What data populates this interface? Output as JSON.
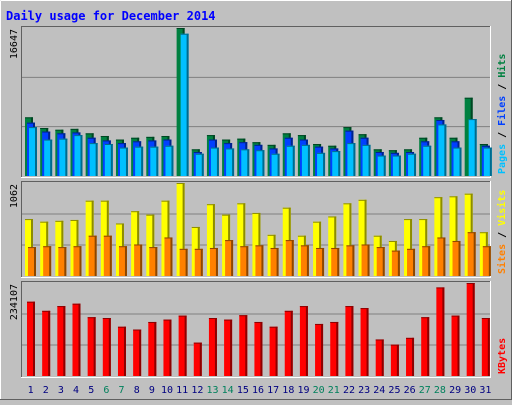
{
  "chart_data": {
    "type": "bar",
    "title": "Daily usage for December 2014",
    "categories": [
      "1",
      "2",
      "3",
      "4",
      "5",
      "6",
      "7",
      "8",
      "9",
      "10",
      "11",
      "12",
      "13",
      "14",
      "15",
      "16",
      "17",
      "18",
      "19",
      "20",
      "21",
      "22",
      "23",
      "24",
      "25",
      "26",
      "27",
      "28",
      "29",
      "30",
      "31"
    ],
    "weekend_days": [
      "6",
      "7",
      "13",
      "14",
      "20",
      "21",
      "27",
      "28"
    ],
    "weekend_color": "#00805c",
    "weekday_color": "#000080",
    "panels": [
      {
        "id": "hits-files-pages",
        "max_label": "16647",
        "ylim": [
          0,
          16647
        ],
        "grid_values": [
          5549,
          11098
        ],
        "side_label": [
          {
            "text": "Pages",
            "color": "#00c0ff"
          },
          {
            "text": " / ",
            "color": "#000000"
          },
          {
            "text": "Files",
            "color": "#0040ff"
          },
          {
            "text": " / ",
            "color": "#000000"
          },
          {
            "text": "Hits",
            "color": "#008040"
          }
        ],
        "series": [
          {
            "name": "Hits",
            "color": "#008040",
            "values": [
              6600,
              5400,
              5200,
              5300,
              4800,
              4500,
              4100,
              4300,
              4400,
              4500,
              16647,
              3000,
              4600,
              4100,
              4200,
              3800,
              3500,
              4800,
              4600,
              3600,
              3400,
              5500,
              4700,
              3000,
              2900,
              3000,
              4300,
              6600,
              4300,
              8800,
              3600
            ]
          },
          {
            "name": "Files",
            "color": "#0040ff",
            "values": [
              6000,
              5000,
              4800,
              4900,
              4300,
              4000,
              3700,
              3900,
              4000,
              4100,
              0,
              2700,
              4100,
              3700,
              3800,
              3500,
              3100,
              4300,
              4100,
              3300,
              3100,
              5100,
              4300,
              2700,
              2600,
              2700,
              3900,
              6300,
              3900,
              0,
              3400
            ]
          },
          {
            "name": "Pages",
            "color": "#00c0ff",
            "values": [
              5500,
              4100,
              4200,
              4600,
              3700,
              3600,
              3200,
              3300,
              3300,
              3400,
              16000,
              2500,
              3200,
              3100,
              3000,
              2900,
              2500,
              3400,
              3500,
              2600,
              2800,
              3700,
              3500,
              2300,
              2300,
              2500,
              3400,
              5800,
              3200,
              6400,
              3200
            ]
          }
        ]
      },
      {
        "id": "visits-sites",
        "max_label": "1062",
        "ylim": [
          0,
          1062
        ],
        "grid_values": [
          354,
          708
        ],
        "side_label": [
          {
            "text": "Sites",
            "color": "#ff8000"
          },
          {
            "text": " / ",
            "color": "#000000"
          },
          {
            "text": "Visits",
            "color": "#ffff00"
          }
        ],
        "series": [
          {
            "name": "Visits",
            "color": "#ffff00",
            "values": [
              650,
              620,
              630,
              640,
              860,
              860,
              600,
              740,
              700,
              860,
              1062,
              560,
              820,
              700,
              830,
              720,
              470,
              780,
              460,
              620,
              680,
              830,
              870,
              460,
              400,
              650,
              650,
              900,
              910,
              940,
              500
            ]
          },
          {
            "name": "Sites",
            "color": "#ff8000",
            "values": [
              330,
              340,
              330,
              340,
              460,
              460,
              340,
              360,
              330,
              440,
              310,
              310,
              320,
              410,
              340,
              350,
              320,
              410,
              350,
              320,
              320,
              350,
              360,
              330,
              290,
              310,
              340,
              440,
              400,
              500,
              340
            ]
          }
        ]
      },
      {
        "id": "kbytes",
        "max_label": "234107",
        "ylim": [
          0,
          234107
        ],
        "grid_values": [
          78036,
          156071
        ],
        "side_label": [
          {
            "text": "KBytes",
            "color": "#ff0000"
          }
        ],
        "series": [
          {
            "name": "KBytes",
            "color": "#ff0000",
            "values": [
              187000,
              164000,
              176000,
              182000,
              148000,
              146000,
              124000,
              117000,
              136000,
              142000,
              152000,
              84000,
              146000,
              142000,
              153000,
              136000,
              124000,
              164000,
              176000,
              131000,
              136000,
              176000,
              171000,
              92000,
              79000,
              96000,
              148000,
              223000,
              152000,
              234107,
              146000
            ]
          }
        ]
      }
    ]
  }
}
